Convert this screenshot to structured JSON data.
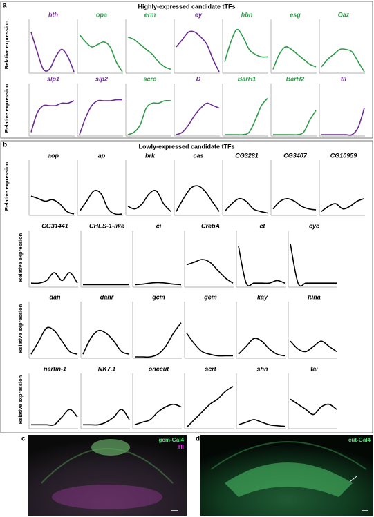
{
  "panels": [
    {
      "label": "a",
      "title": "Highly-expressed candidate tTFs",
      "y_label": "Relative expression"
    },
    {
      "label": "b",
      "title": "Lowly-expressed candidate tTFs",
      "y_label": "Relative expression"
    }
  ],
  "images": [
    {
      "label": "c",
      "stain_1": "gcm-Gal4",
      "stain_2": "Tll"
    },
    {
      "label": "d",
      "stain_1": "cut-Gal4"
    }
  ],
  "chart_data": [
    {
      "type": "line",
      "title": "hth",
      "color": "#6a2c91",
      "ylim": [
        0,
        1
      ],
      "values": [
        0.8,
        0.4,
        0.05,
        0.05,
        0.3,
        0.45,
        0.3,
        0.0
      ]
    },
    {
      "type": "line",
      "title": "opa",
      "color": "#2e9a4a",
      "ylim": [
        0,
        1
      ],
      "values": [
        0.75,
        0.6,
        0.5,
        0.55,
        0.6,
        0.5,
        0.2,
        0.0
      ]
    },
    {
      "type": "line",
      "title": "erm",
      "color": "#2e9a4a",
      "ylim": [
        0,
        1
      ],
      "values": [
        0.7,
        0.65,
        0.55,
        0.45,
        0.35,
        0.2,
        0.1,
        0.05
      ]
    },
    {
      "type": "line",
      "title": "ey",
      "color": "#6a2c91",
      "ylim": [
        0,
        1
      ],
      "values": [
        0.5,
        0.65,
        0.8,
        0.8,
        0.7,
        0.55,
        0.25,
        0.0
      ]
    },
    {
      "type": "line",
      "title": "hbn",
      "color": "#2e9a4a",
      "ylim": [
        0,
        1
      ],
      "values": [
        0.2,
        0.6,
        0.85,
        0.7,
        0.45,
        0.35,
        0.3,
        0.3
      ]
    },
    {
      "type": "line",
      "title": "esg",
      "color": "#2e9a4a",
      "ylim": [
        0,
        1
      ],
      "values": [
        0.05,
        0.35,
        0.5,
        0.45,
        0.35,
        0.25,
        0.15,
        0.1
      ]
    },
    {
      "type": "line",
      "title": "Oaz",
      "color": "#2e9a4a",
      "ylim": [
        0,
        1
      ],
      "values": [
        0.1,
        0.25,
        0.35,
        0.45,
        0.45,
        0.4,
        0.2,
        0.0
      ]
    },
    {
      "type": "line",
      "title": "slp1",
      "color": "#6a2c91",
      "ylim": [
        0,
        1
      ],
      "values": [
        0.05,
        0.45,
        0.6,
        0.6,
        0.6,
        0.65,
        0.65,
        0.7
      ]
    },
    {
      "type": "line",
      "title": "slp2",
      "color": "#6a2c91",
      "ylim": [
        0,
        1
      ],
      "values": [
        0.0,
        0.35,
        0.6,
        0.7,
        0.7,
        0.7,
        0.72,
        0.72
      ]
    },
    {
      "type": "line",
      "title": "scro",
      "color": "#2e9a4a",
      "ylim": [
        0,
        1
      ],
      "values": [
        0.0,
        0.05,
        0.2,
        0.55,
        0.65,
        0.65,
        0.7,
        0.7
      ]
    },
    {
      "type": "line",
      "title": "D",
      "color": "#6a2c91",
      "ylim": [
        0,
        1
      ],
      "values": [
        0.0,
        0.05,
        0.2,
        0.4,
        0.55,
        0.65,
        0.6,
        0.55
      ]
    },
    {
      "type": "line",
      "title": "BarH1",
      "color": "#2e9a4a",
      "ylim": [
        0,
        1
      ],
      "values": [
        0,
        0,
        0,
        0,
        0.05,
        0.3,
        0.6,
        0.75
      ]
    },
    {
      "type": "line",
      "title": "BarH2",
      "color": "#2e9a4a",
      "ylim": [
        0,
        1
      ],
      "values": [
        0,
        0,
        0,
        0,
        0,
        0.05,
        0.3,
        0.5
      ]
    },
    {
      "type": "line",
      "title": "tll",
      "color": "#6a2c91",
      "ylim": [
        0,
        1
      ],
      "values": [
        0,
        0,
        0,
        0,
        0,
        0,
        0.15,
        0.55
      ]
    },
    {
      "type": "line",
      "title": "aop",
      "color": "#000000",
      "ylim": [
        0,
        1
      ],
      "values": [
        0.35,
        0.3,
        0.25,
        0.28,
        0.2,
        0.05,
        0.0
      ]
    },
    {
      "type": "line",
      "title": "ap",
      "color": "#000000",
      "ylim": [
        0,
        1
      ],
      "values": [
        0.05,
        0.25,
        0.45,
        0.4,
        0.1,
        0.0,
        0.0
      ]
    },
    {
      "type": "line",
      "title": "brk",
      "color": "#000000",
      "ylim": [
        0,
        1
      ],
      "values": [
        0.15,
        0.1,
        0.2,
        0.4,
        0.45,
        0.2,
        0.05
      ]
    },
    {
      "type": "line",
      "title": "cas",
      "color": "#000000",
      "ylim": [
        0,
        1
      ],
      "values": [
        0.05,
        0.3,
        0.5,
        0.55,
        0.45,
        0.25,
        0.05
      ]
    },
    {
      "type": "line",
      "title": "CG3281",
      "color": "#000000",
      "ylim": [
        0,
        1
      ],
      "values": [
        0.05,
        0.2,
        0.3,
        0.25,
        0.1,
        0.05,
        0.02
      ]
    },
    {
      "type": "line",
      "title": "CG3407",
      "color": "#000000",
      "ylim": [
        0,
        1
      ],
      "values": [
        0.1,
        0.25,
        0.3,
        0.25,
        0.15,
        0.1,
        0.08
      ]
    },
    {
      "type": "line",
      "title": "CG10959",
      "color": "#000000",
      "ylim": [
        0,
        1
      ],
      "values": [
        0.05,
        0.15,
        0.2,
        0.1,
        0.15,
        0.25,
        0.3
      ]
    },
    {
      "type": "line",
      "title": "CG31441",
      "color": "#000000",
      "ylim": [
        0,
        1
      ],
      "values": [
        0.05,
        0.05,
        0.1,
        0.25,
        0.1,
        0.25,
        0.05
      ]
    },
    {
      "type": "line",
      "title": "CHES-1-like",
      "color": "#000000",
      "ylim": [
        0,
        1
      ],
      "values": [
        0.02,
        0.02,
        0.02,
        0.02,
        0.02,
        0.02,
        0.02
      ]
    },
    {
      "type": "line",
      "title": "ci",
      "color": "#000000",
      "ylim": [
        0,
        1
      ],
      "values": [
        0.02,
        0.03,
        0.05,
        0.06,
        0.05,
        0.03,
        0.02
      ]
    },
    {
      "type": "line",
      "title": "CrebA",
      "color": "#000000",
      "ylim": [
        0,
        1
      ],
      "values": [
        0.4,
        0.45,
        0.5,
        0.45,
        0.3,
        0.15,
        0.05
      ]
    },
    {
      "type": "line",
      "title": "ct",
      "color": "#000000",
      "ylim": [
        0,
        1
      ],
      "values": [
        0.75,
        0.05,
        0.05,
        0.05,
        0.05,
        0.1,
        0.05
      ]
    },
    {
      "type": "line",
      "title": "cyc",
      "color": "#000000",
      "ylim": [
        0,
        1
      ],
      "values": [
        0.8,
        0.05,
        0.05,
        0.05,
        0.05,
        0.05,
        0.05
      ]
    },
    {
      "type": "line",
      "title": "dan",
      "color": "#000000",
      "ylim": [
        0,
        1
      ],
      "values": [
        0.05,
        0.3,
        0.55,
        0.5,
        0.3,
        0.1,
        0.05
      ]
    },
    {
      "type": "line",
      "title": "danr",
      "color": "#000000",
      "ylim": [
        0,
        1
      ],
      "values": [
        0.05,
        0.35,
        0.5,
        0.45,
        0.3,
        0.1,
        0.05
      ]
    },
    {
      "type": "line",
      "title": "gcm",
      "color": "#000000",
      "ylim": [
        0,
        1
      ],
      "values": [
        0,
        0,
        0,
        0.05,
        0.2,
        0.45,
        0.65
      ]
    },
    {
      "type": "line",
      "title": "gem",
      "color": "#000000",
      "ylim": [
        0,
        1
      ],
      "values": [
        0.45,
        0.25,
        0.1,
        0.05,
        0.02,
        0.02,
        0.02
      ]
    },
    {
      "type": "line",
      "title": "kay",
      "color": "#000000",
      "ylim": [
        0,
        1
      ],
      "values": [
        0.05,
        0.2,
        0.35,
        0.3,
        0.15,
        0.05,
        0.02
      ]
    },
    {
      "type": "line",
      "title": "luna",
      "color": "#000000",
      "ylim": [
        0,
        1
      ],
      "values": [
        0.3,
        0.15,
        0.1,
        0.2,
        0.3,
        0.2,
        0.1
      ]
    },
    {
      "type": "line",
      "title": "nerfin-1",
      "color": "#000000",
      "ylim": [
        0,
        1
      ],
      "values": [
        0.05,
        0.05,
        0.05,
        0.05,
        0.2,
        0.35,
        0.2
      ]
    },
    {
      "type": "line",
      "title": "NK7.1",
      "color": "#000000",
      "ylim": [
        0,
        1
      ],
      "values": [
        0.05,
        0.05,
        0.05,
        0.1,
        0.2,
        0.35,
        0.15
      ]
    },
    {
      "type": "line",
      "title": "onecut",
      "color": "#000000",
      "ylim": [
        0,
        1
      ],
      "values": [
        0.05,
        0.1,
        0.15,
        0.3,
        0.4,
        0.45,
        0.4
      ]
    },
    {
      "type": "line",
      "title": "scrt",
      "color": "#000000",
      "ylim": [
        0,
        1
      ],
      "values": [
        0.0,
        0.15,
        0.3,
        0.45,
        0.55,
        0.7,
        0.8
      ]
    },
    {
      "type": "line",
      "title": "shn",
      "color": "#000000",
      "ylim": [
        0,
        1
      ],
      "values": [
        0.05,
        0.1,
        0.15,
        0.1,
        0.05,
        0.03,
        0.02
      ]
    },
    {
      "type": "line",
      "title": "tai",
      "color": "#000000",
      "ylim": [
        0,
        1
      ],
      "values": [
        0.55,
        0.45,
        0.35,
        0.25,
        0.4,
        0.45,
        0.35
      ]
    }
  ]
}
